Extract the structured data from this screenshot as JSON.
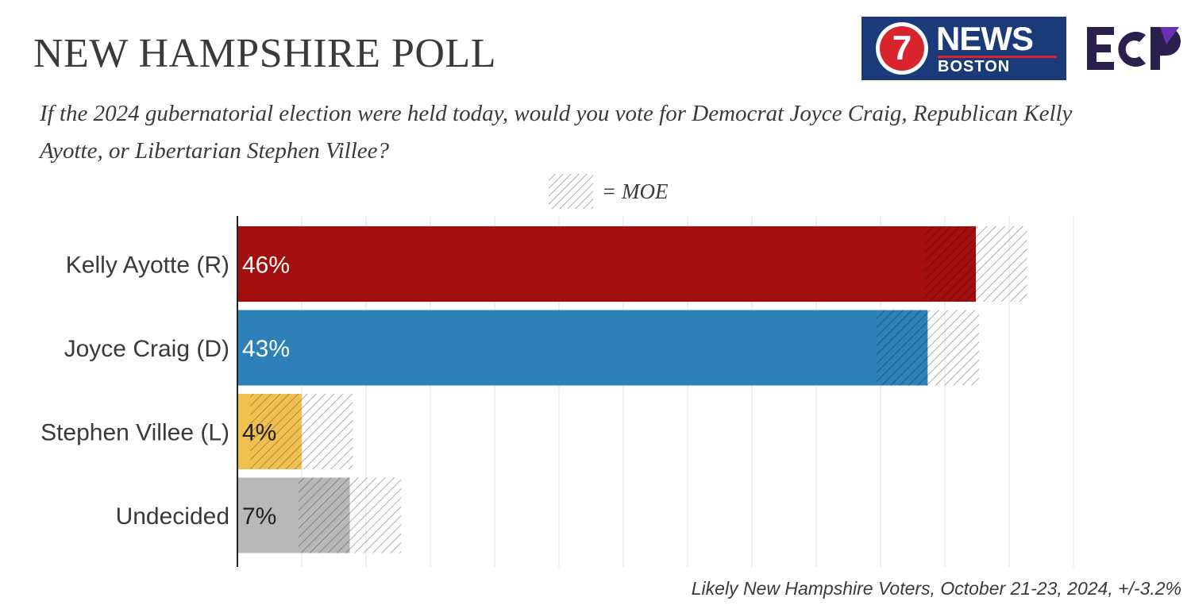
{
  "header": {
    "title": "NEW HAMPSHIRE POLL",
    "subtitle": "If the 2024 gubernatorial election were held today, would you vote for Democrat Joyce Craig, Republican Kelly Ayotte, or Libertarian Stephen Villee?",
    "legend_label": "= MOE"
  },
  "logos": {
    "news_seven": "7",
    "news_word": "NEWS",
    "news_city": "BOSTON",
    "ecp": "ECP"
  },
  "footnote": "Likely New Hampshire Voters, October 21-23, 2024, +/-3.2%",
  "colors": {
    "republican": "#a30f0f",
    "democrat": "#2d80b8",
    "libertarian": "#f0c150",
    "undecided": "#b8b8b8",
    "news_blue": "#1a3a7a",
    "news_red": "#d9232d",
    "ecp_dark": "#2a1f4d",
    "ecp_purple": "#6a2fb3"
  },
  "chart_data": {
    "type": "bar",
    "orientation": "horizontal",
    "categories": [
      "Kelly Ayotte (R)",
      "Joyce Craig (D)",
      "Stephen Villee (L)",
      "Undecided"
    ],
    "values": [
      46,
      43,
      4,
      7
    ],
    "value_labels": [
      "46%",
      "43%",
      "4%",
      "7%"
    ],
    "moe": 3.2,
    "bar_colors": [
      "#a30f0f",
      "#2d80b8",
      "#f0c150",
      "#b8b8b8"
    ],
    "label_colors": [
      "#ffffff",
      "#ffffff",
      "#222222",
      "#222222"
    ],
    "xlim": [
      0,
      52
    ],
    "grid": true,
    "legend": "top-center"
  }
}
